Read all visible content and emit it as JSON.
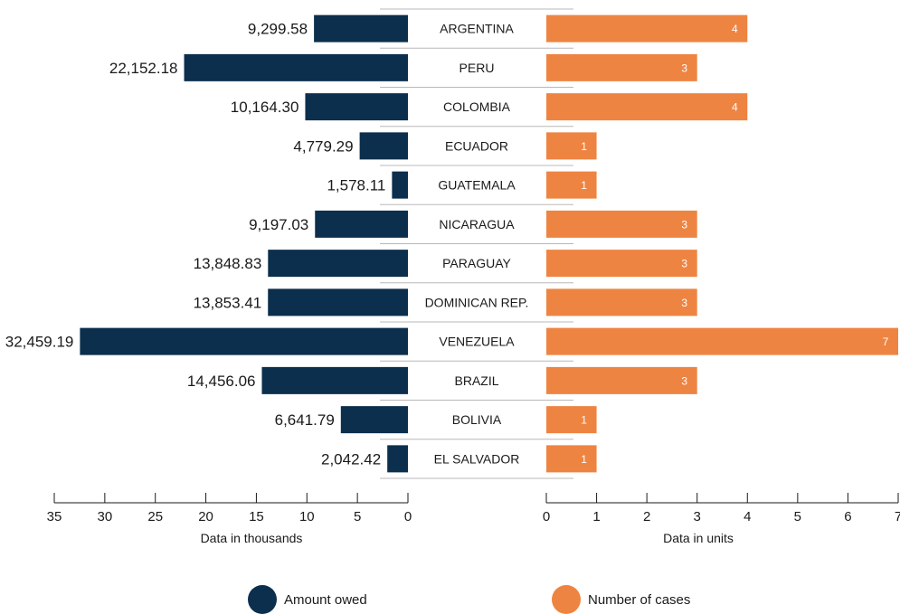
{
  "chart_data": {
    "type": "bar",
    "categories": [
      "ARGENTINA",
      "PERU",
      "COLOMBIA",
      "ECUADOR",
      "GUATEMALA",
      "NICARAGUA",
      "PARAGUAY",
      "DOMINICAN REP.",
      "VENEZUELA",
      "BRAZIL",
      "BOLIVIA",
      "EL SALVADOR"
    ],
    "series": [
      {
        "name": "Amount owed",
        "color": "#0b2f4d",
        "values": [
          9299.58,
          22152.18,
          10164.3,
          4779.29,
          1578.11,
          9197.03,
          13848.83,
          13853.41,
          32459.19,
          14456.06,
          6641.79,
          2042.42
        ],
        "labels": [
          "9,299.58",
          "22,152.18",
          "10,164.30",
          "4,779.29",
          "1,578.11",
          "9,197.03",
          "13,848.83",
          "13,853.41",
          "32,459.19",
          "14,456.06",
          "6,641.79",
          "2,042.42"
        ],
        "axis_title": "Data in thousands",
        "ticks": [
          "35",
          "30",
          "25",
          "20",
          "15",
          "10",
          "5",
          "0"
        ],
        "xlim": [
          0,
          35
        ]
      },
      {
        "name": "Number of cases",
        "color": "#ee8442",
        "values": [
          4,
          3,
          4,
          1,
          1,
          3,
          3,
          3,
          7,
          3,
          1,
          1
        ],
        "labels": [
          "4",
          "3",
          "4",
          "1",
          "1",
          "3",
          "3",
          "3",
          "7",
          "3",
          "1",
          "1"
        ],
        "axis_title": "Data in units",
        "ticks": [
          "0",
          "1",
          "2",
          "3",
          "4",
          "5",
          "6",
          "7"
        ],
        "xlim": [
          0,
          7
        ]
      }
    ],
    "legend": {
      "placement": "bottom",
      "items": [
        "Amount owed",
        "Number of cases"
      ]
    }
  }
}
